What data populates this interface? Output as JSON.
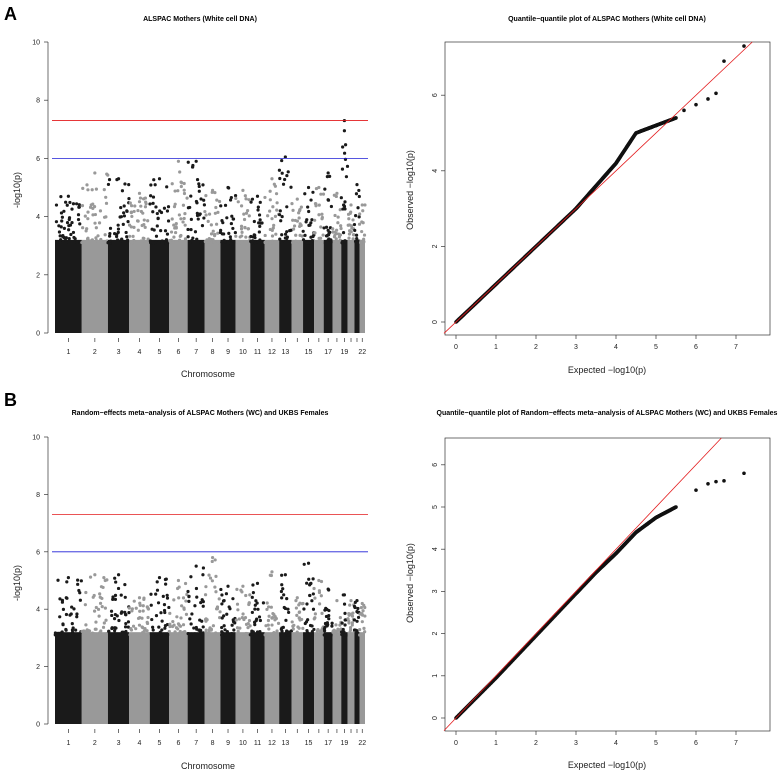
{
  "panels": [
    {
      "label": "A"
    },
    {
      "label": "B"
    }
  ],
  "chart_data": [
    {
      "type": "scatter",
      "subtype": "manhattan",
      "title": "ALSPAC Mothers (White cell DNA)",
      "xlabel": "Chromosome",
      "ylabel": "-log10(p)",
      "ylim": [
        0,
        10
      ],
      "yticks": [
        0,
        2,
        4,
        6,
        8,
        10
      ],
      "xtick_labels": [
        "1",
        "2",
        "3",
        "4",
        "5",
        "6",
        "7",
        "8",
        "9",
        "10",
        "11",
        "12",
        "13",
        "15",
        "17",
        "19",
        "22"
      ],
      "chromosomes": [
        1,
        2,
        3,
        4,
        5,
        6,
        7,
        8,
        9,
        10,
        11,
        12,
        13,
        14,
        15,
        16,
        17,
        18,
        19,
        20,
        21,
        22
      ],
      "peak_values": [
        4.7,
        5.5,
        5.3,
        4.8,
        5.3,
        5.9,
        5.9,
        4.9,
        5.0,
        4.9,
        4.7,
        5.3,
        6.05,
        4.6,
        5.0,
        5.0,
        5.5,
        4.8,
        7.3,
        4.4,
        5.1,
        4.4
      ],
      "extra_points": [
        {
          "chromosome": 19,
          "value": 6.95
        }
      ],
      "genome_wide_line": 7.3,
      "suggestive_line": 6,
      "colors": {
        "odd": "#1a1a1a",
        "even": "#999999",
        "genome_wide": "#e31a1c",
        "suggestive": "#1f1fd6"
      }
    },
    {
      "type": "scatter",
      "subtype": "qq",
      "title": "Quantile−quantile plot of ALSPAC Mothers (White cell DNA)",
      "xlabel": "Expected −log10(p)",
      "ylabel": "Observed −log10(p)",
      "xlim": [
        0,
        7.5
      ],
      "ylim": [
        0,
        7.5
      ],
      "xticks": [
        0,
        1,
        2,
        3,
        4,
        5,
        6,
        7
      ],
      "yticks": [
        0,
        2,
        4,
        6
      ],
      "expected": [
        0,
        1,
        2,
        3,
        3.5,
        4,
        4.5,
        5,
        5.5,
        5.7,
        6,
        6.3,
        6.5,
        6.7,
        7.2
      ],
      "observed": [
        0,
        1,
        2,
        3,
        3.6,
        4.2,
        5.0,
        5.2,
        5.4,
        5.6,
        5.75,
        5.9,
        6.05,
        6.9,
        7.3
      ]
    },
    {
      "type": "scatter",
      "subtype": "manhattan",
      "title": "Random−effects meta−analysis of ALSPAC Mothers (WC) and UKBS Females",
      "xlabel": "Chromosome",
      "ylabel": "-log10(p)",
      "ylim": [
        0,
        10
      ],
      "yticks": [
        0,
        2,
        4,
        6,
        8,
        10
      ],
      "xtick_labels": [
        "1",
        "2",
        "3",
        "4",
        "5",
        "6",
        "7",
        "8",
        "9",
        "10",
        "11",
        "12",
        "13",
        "15",
        "17",
        "19",
        "22"
      ],
      "chromosomes": [
        1,
        2,
        3,
        4,
        5,
        6,
        7,
        8,
        9,
        10,
        11,
        12,
        13,
        14,
        15,
        16,
        17,
        18,
        19,
        20,
        21,
        22
      ],
      "peak_values": [
        5.1,
        5.2,
        5.2,
        4.4,
        5.1,
        5.0,
        5.5,
        5.8,
        4.8,
        4.8,
        4.9,
        5.3,
        5.2,
        4.4,
        5.6,
        5.0,
        4.7,
        4.3,
        4.5,
        4.3,
        4.3,
        4.2
      ],
      "extra_points": [],
      "genome_wide_line": 7.3,
      "suggestive_line": 6,
      "colors": {
        "odd": "#1a1a1a",
        "even": "#999999",
        "genome_wide": "#e31a1c",
        "suggestive": "#1f1fd6"
      }
    },
    {
      "type": "scatter",
      "subtype": "qq",
      "title": "Quantile−quantile plot of Random−effects meta−analysis of ALSPAC Mothers (WC) and UKBS Females",
      "xlabel": "Expected −log10(p)",
      "ylabel": "Observed −log10(p)",
      "xlim": [
        0,
        7.5
      ],
      "ylim": [
        0,
        6.2
      ],
      "xticks": [
        0,
        1,
        2,
        3,
        4,
        5,
        6,
        7
      ],
      "yticks": [
        0,
        1,
        2,
        3,
        4,
        5,
        6
      ],
      "expected": [
        0,
        1,
        2,
        3,
        3.5,
        4,
        4.5,
        5,
        5.5,
        6,
        6.3,
        6.5,
        6.7,
        7.2
      ],
      "observed": [
        0,
        0.95,
        1.95,
        2.95,
        3.45,
        3.9,
        4.4,
        4.75,
        5.0,
        5.4,
        5.55,
        5.6,
        5.62,
        5.8
      ]
    }
  ]
}
